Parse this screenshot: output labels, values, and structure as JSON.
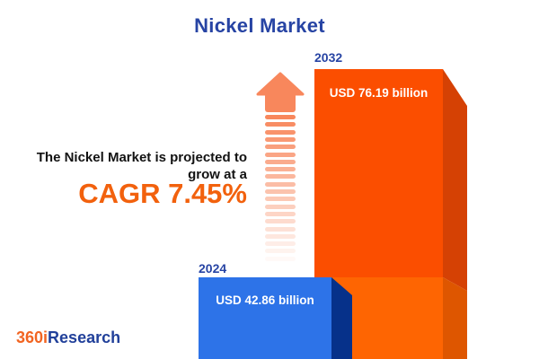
{
  "header": {
    "title": "Nickel Market"
  },
  "tagline": {
    "line1": "The Nickel Market is projected to",
    "line2": "grow at a",
    "cagr_label": "CAGR 7.45%"
  },
  "chart_data": {
    "type": "bar",
    "title": "Nickel Market",
    "unit": "USD billion",
    "categories": [
      "2024",
      "2032"
    ],
    "values": [
      42.86,
      76.19
    ],
    "cagr_percent": 7.45,
    "bars": [
      {
        "year": "2024",
        "value": 42.86,
        "value_label": "USD 42.86 billion",
        "front_color": "#2d73e8",
        "side_color": "#06318a"
      },
      {
        "year": "2032",
        "value": 76.19,
        "value_label": "USD 76.19 billion",
        "front_color": "#fb4e00",
        "side_color": "#d54104",
        "lower_front_color": "#fe6502",
        "lower_side_color": "#de5600"
      }
    ],
    "legend": "none",
    "grid": "off"
  },
  "arrow": {
    "color": "#f8875c",
    "stripe_count": 20
  },
  "logo": {
    "part1": "360i",
    "part2": "Research"
  },
  "colors": {
    "title_blue": "#2744a4",
    "cagr_orange": "#f2610d",
    "text_black": "#121212",
    "logo_orange": "#f26522",
    "logo_blue": "#21409a"
  }
}
